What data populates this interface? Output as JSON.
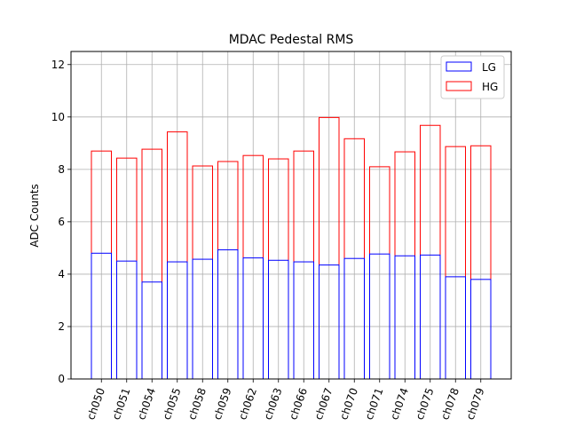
{
  "chart_data": {
    "type": "bar",
    "title": "MDAC Pedestal RMS",
    "xlabel": "",
    "ylabel": "ADC Counts",
    "ylim": [
      0,
      12.5
    ],
    "yticks": [
      0,
      2,
      4,
      6,
      8,
      10,
      12
    ],
    "grid": true,
    "legend_position": "top-right",
    "categories": [
      "ch050",
      "ch051",
      "ch054",
      "ch055",
      "ch058",
      "ch059",
      "ch062",
      "ch063",
      "ch066",
      "ch067",
      "ch070",
      "ch071",
      "ch074",
      "ch075",
      "ch078",
      "ch079"
    ],
    "series": [
      {
        "name": "LG",
        "color": "#0000ff",
        "values": [
          4.8,
          4.5,
          3.7,
          4.47,
          4.57,
          4.93,
          4.62,
          4.53,
          4.47,
          4.35,
          4.6,
          4.77,
          4.7,
          4.73,
          3.9,
          3.8
        ]
      },
      {
        "name": "HG",
        "color": "#ff0000",
        "values": [
          8.7,
          8.43,
          8.77,
          9.43,
          8.13,
          8.3,
          8.53,
          8.4,
          8.7,
          9.98,
          9.17,
          8.1,
          8.67,
          9.68,
          8.87,
          8.9
        ]
      }
    ]
  }
}
